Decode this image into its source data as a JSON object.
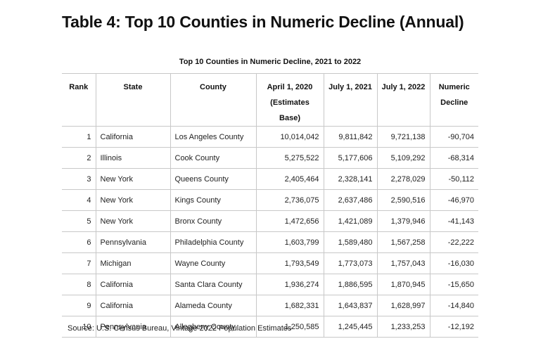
{
  "title": "Table 4: Top 10 Counties in Numeric Decline (Annual)",
  "caption": "Top 10 Counties in Numeric Decline, 2021 to 2022",
  "headers": {
    "rank": "Rank",
    "state": "State",
    "county": "County",
    "april_2020_line1": "April 1, 2020",
    "april_2020_line2": "(Estimates Base)",
    "july_2021": "July 1, 2021",
    "july_2022": "July 1, 2022",
    "decline_line1": "Numeric",
    "decline_line2": "Decline"
  },
  "rows": [
    {
      "rank": "1",
      "state": "California",
      "county": "Los Angeles County",
      "april_2020": "10,014,042",
      "july_2021": "9,811,842",
      "july_2022": "9,721,138",
      "decline": "-90,704"
    },
    {
      "rank": "2",
      "state": "Illinois",
      "county": "Cook County",
      "april_2020": "5,275,522",
      "july_2021": "5,177,606",
      "july_2022": "5,109,292",
      "decline": "-68,314"
    },
    {
      "rank": "3",
      "state": "New York",
      "county": "Queens County",
      "april_2020": "2,405,464",
      "july_2021": "2,328,141",
      "july_2022": "2,278,029",
      "decline": "-50,112"
    },
    {
      "rank": "4",
      "state": "New York",
      "county": "Kings County",
      "april_2020": "2,736,075",
      "july_2021": "2,637,486",
      "july_2022": "2,590,516",
      "decline": "-46,970"
    },
    {
      "rank": "5",
      "state": "New York",
      "county": "Bronx County",
      "april_2020": "1,472,656",
      "july_2021": "1,421,089",
      "july_2022": "1,379,946",
      "decline": "-41,143"
    },
    {
      "rank": "6",
      "state": "Pennsylvania",
      "county": "Philadelphia County",
      "april_2020": "1,603,799",
      "july_2021": "1,589,480",
      "july_2022": "1,567,258",
      "decline": "-22,222"
    },
    {
      "rank": "7",
      "state": "Michigan",
      "county": "Wayne County",
      "april_2020": "1,793,549",
      "july_2021": "1,773,073",
      "july_2022": "1,757,043",
      "decline": "-16,030"
    },
    {
      "rank": "8",
      "state": "California",
      "county": "Santa Clara County",
      "april_2020": "1,936,274",
      "july_2021": "1,886,595",
      "july_2022": "1,870,945",
      "decline": "-15,650"
    },
    {
      "rank": "9",
      "state": "California",
      "county": "Alameda County",
      "april_2020": "1,682,331",
      "july_2021": "1,643,837",
      "july_2022": "1,628,997",
      "decline": "-14,840"
    },
    {
      "rank": "10",
      "state": "Pennsylvania",
      "county": "Allegheny County",
      "april_2020": "1,250,585",
      "july_2021": "1,245,445",
      "july_2022": "1,233,253",
      "decline": "-12,192"
    }
  ],
  "source": "Source: U.S. Census Bureau, Vintage 2022 Population Estimates"
}
